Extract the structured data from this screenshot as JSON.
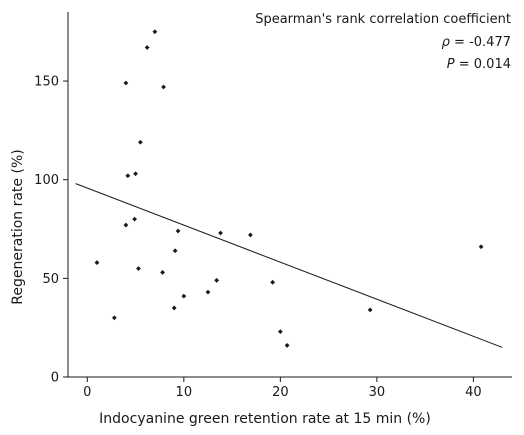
{
  "chart_data": {
    "type": "scatter",
    "title": "",
    "xlabel": "Indocyanine green retention rate at 15 min (%)",
    "ylabel": "Regeneration rate (%)",
    "xlim": [
      -2,
      44
    ],
    "ylim": [
      0,
      185
    ],
    "x_ticks": [
      0,
      10,
      20,
      30,
      40
    ],
    "y_ticks": [
      0,
      50,
      100,
      150
    ],
    "grid": false,
    "points": [
      {
        "x": 1.0,
        "y": 58
      },
      {
        "x": 2.8,
        "y": 30
      },
      {
        "x": 4.0,
        "y": 149
      },
      {
        "x": 4.0,
        "y": 77
      },
      {
        "x": 4.2,
        "y": 102
      },
      {
        "x": 4.9,
        "y": 80
      },
      {
        "x": 5.0,
        "y": 103
      },
      {
        "x": 5.3,
        "y": 55
      },
      {
        "x": 5.5,
        "y": 119
      },
      {
        "x": 6.2,
        "y": 167
      },
      {
        "x": 7.0,
        "y": 175
      },
      {
        "x": 7.8,
        "y": 53
      },
      {
        "x": 7.9,
        "y": 147
      },
      {
        "x": 9.0,
        "y": 35
      },
      {
        "x": 9.1,
        "y": 64
      },
      {
        "x": 9.4,
        "y": 74
      },
      {
        "x": 10.0,
        "y": 41
      },
      {
        "x": 12.5,
        "y": 43
      },
      {
        "x": 13.4,
        "y": 49
      },
      {
        "x": 13.8,
        "y": 73
      },
      {
        "x": 16.9,
        "y": 72
      },
      {
        "x": 19.2,
        "y": 48
      },
      {
        "x": 20.0,
        "y": 23
      },
      {
        "x": 20.7,
        "y": 16
      },
      {
        "x": 29.3,
        "y": 34
      },
      {
        "x": 40.8,
        "y": 66
      }
    ],
    "trendline": {
      "x": [
        -1.2,
        43.0
      ],
      "y": [
        98,
        15
      ]
    },
    "annotation": {
      "title": "Spearman's rank correlation coefficient",
      "rho_symbol": "ρ",
      "rho_value": " = -0.477",
      "p_symbol": "P",
      "p_value": " = 0.014"
    }
  }
}
